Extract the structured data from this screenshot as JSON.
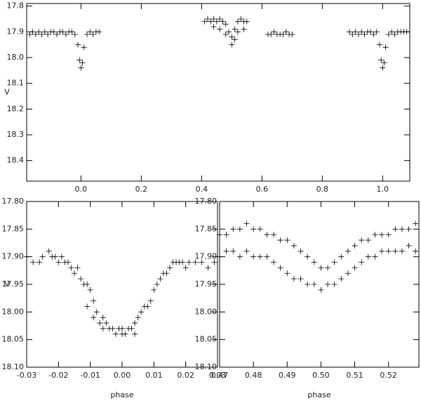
{
  "chart_data": [
    {
      "type": "scatter",
      "ylabel": "V",
      "y_inverted": true,
      "xlim": [
        -0.18,
        1.09
      ],
      "ylim": [
        17.79,
        18.48
      ],
      "xticks": [
        {
          "value": 0,
          "label": "0.0"
        },
        0.2,
        0.4,
        0.6,
        0.8,
        {
          "value": 1,
          "label": "1.0"
        }
      ],
      "yticks": [
        17.8,
        17.9,
        {
          "value": 18,
          "label": "18.0"
        },
        18.1,
        18.2,
        18.3,
        18.4
      ],
      "x": [
        -0.17,
        -0.16,
        -0.15,
        -0.14,
        -0.13,
        -0.12,
        -0.11,
        -0.1,
        -0.09,
        -0.08,
        -0.07,
        -0.06,
        -0.05,
        -0.04,
        -0.03,
        -0.02,
        -0.01,
        -0.005,
        0,
        0.005,
        0.01,
        0.02,
        0.03,
        0.04,
        0.05,
        0.06,
        0.41,
        0.42,
        0.43,
        0.44,
        0.45,
        0.46,
        0.47,
        0.48,
        0.49,
        0.5,
        0.51,
        0.52,
        0.53,
        0.54,
        0.55,
        0.44,
        0.46,
        0.48,
        0.5,
        0.51,
        0.52,
        0.54,
        0.62,
        0.63,
        0.64,
        0.65,
        0.66,
        0.67,
        0.68,
        0.69,
        0.7,
        0.89,
        0.9,
        0.91,
        0.92,
        0.93,
        0.94,
        0.95,
        0.96,
        0.97,
        0.98,
        0.99,
        0.995,
        1,
        1.005,
        1.01,
        1.02,
        1.03,
        1.04,
        1.05,
        1.06,
        1.07,
        1.08
      ],
      "values": [
        17.91,
        17.9,
        17.91,
        17.9,
        17.91,
        17.9,
        17.91,
        17.9,
        17.9,
        17.91,
        17.9,
        17.9,
        17.91,
        17.9,
        17.9,
        17.91,
        17.95,
        18.01,
        18.04,
        18.02,
        17.96,
        17.91,
        17.9,
        17.91,
        17.9,
        17.9,
        17.86,
        17.85,
        17.86,
        17.85,
        17.86,
        17.85,
        17.86,
        17.87,
        17.9,
        17.92,
        17.89,
        17.86,
        17.85,
        17.86,
        17.86,
        17.88,
        17.89,
        17.91,
        17.95,
        17.93,
        17.9,
        17.89,
        17.91,
        17.91,
        17.9,
        17.91,
        17.91,
        17.91,
        17.9,
        17.91,
        17.91,
        17.9,
        17.91,
        17.9,
        17.91,
        17.9,
        17.91,
        17.9,
        17.9,
        17.91,
        17.9,
        17.95,
        18.01,
        18.04,
        18.02,
        17.96,
        17.91,
        17.9,
        17.91,
        17.9,
        17.9,
        17.9,
        17.9
      ]
    },
    {
      "type": "scatter",
      "xlabel": "phase",
      "ylabel": "V",
      "y_inverted": true,
      "xlim": [
        -0.03,
        0.03
      ],
      "ylim": [
        17.8,
        18.1
      ],
      "xticks": [
        -0.03,
        -0.02,
        -0.01,
        {
          "value": 0,
          "label": "0.00"
        },
        0.01,
        0.02,
        0.03
      ],
      "yticks": [
        {
          "value": 17.8,
          "label": "17.80"
        },
        17.85,
        {
          "value": 17.9,
          "label": "17.90"
        },
        17.95,
        {
          "value": 18,
          "label": "18.00"
        },
        18.05,
        {
          "value": 18.1,
          "label": "18.10"
        }
      ],
      "x": [
        -0.03,
        -0.028,
        -0.026,
        -0.025,
        -0.023,
        -0.022,
        -0.021,
        -0.02,
        -0.019,
        -0.018,
        -0.017,
        -0.016,
        -0.015,
        -0.014,
        -0.013,
        -0.012,
        -0.011,
        -0.01,
        -0.011,
        -0.009,
        -0.009,
        -0.008,
        -0.007,
        -0.006,
        -0.006,
        -0.005,
        -0.004,
        -0.003,
        -0.002,
        -0.001,
        0,
        0,
        0.001,
        0.002,
        0.003,
        0.004,
        0.004,
        0.005,
        0.006,
        0.007,
        0.008,
        0.009,
        0.01,
        0.011,
        0.012,
        0.013,
        0.014,
        0.015,
        0.016,
        0.017,
        0.018,
        0.019,
        0.02,
        0.021,
        0.023,
        0.025,
        0.027,
        0.029
      ],
      "values": [
        17.9,
        17.91,
        17.91,
        17.9,
        17.89,
        17.9,
        17.9,
        17.91,
        17.9,
        17.91,
        17.91,
        17.92,
        17.93,
        17.92,
        17.94,
        17.95,
        17.95,
        17.96,
        17.99,
        17.98,
        18.01,
        18,
        18.02,
        18.01,
        18.03,
        18.02,
        18.03,
        18.03,
        18.04,
        18.03,
        18.04,
        18.03,
        18.04,
        18.03,
        18.03,
        18.04,
        18.02,
        18.01,
        18,
        17.99,
        17.99,
        17.98,
        17.96,
        17.95,
        17.94,
        17.93,
        17.93,
        17.92,
        17.91,
        17.91,
        17.91,
        17.91,
        17.92,
        17.91,
        17.91,
        17.91,
        17.92,
        17.91
      ]
    },
    {
      "type": "scatter",
      "xlabel": "phase",
      "y_inverted": true,
      "xlim": [
        0.47,
        0.529
      ],
      "ylim": [
        17.8,
        18.1
      ],
      "xticks": [
        0.47,
        0.48,
        0.49,
        {
          "value": 0.5,
          "label": "0.50"
        },
        0.51,
        0.52
      ],
      "yticks": [
        {
          "value": 17.8,
          "label": "17.80"
        },
        17.85,
        {
          "value": 17.9,
          "label": "17.90"
        },
        17.95,
        {
          "value": 18,
          "label": "18.00"
        },
        18.05,
        {
          "value": 18.1,
          "label": "18.10"
        }
      ],
      "x": [
        0.47,
        0.472,
        0.474,
        0.476,
        0.478,
        0.48,
        0.482,
        0.484,
        0.486,
        0.488,
        0.49,
        0.492,
        0.494,
        0.496,
        0.498,
        0.5,
        0.502,
        0.504,
        0.506,
        0.508,
        0.51,
        0.512,
        0.514,
        0.516,
        0.518,
        0.52,
        0.522,
        0.524,
        0.526,
        0.528,
        0.47,
        0.472,
        0.474,
        0.476,
        0.478,
        0.48,
        0.482,
        0.484,
        0.486,
        0.488,
        0.49,
        0.492,
        0.494,
        0.496,
        0.498,
        0.5,
        0.502,
        0.504,
        0.506,
        0.508,
        0.51,
        0.512,
        0.514,
        0.516,
        0.518,
        0.52,
        0.522,
        0.524,
        0.526,
        0.528
      ],
      "values": [
        17.86,
        17.86,
        17.85,
        17.85,
        17.84,
        17.85,
        17.85,
        17.86,
        17.86,
        17.87,
        17.87,
        17.88,
        17.89,
        17.9,
        17.91,
        17.92,
        17.92,
        17.91,
        17.9,
        17.89,
        17.88,
        17.87,
        17.87,
        17.86,
        17.86,
        17.86,
        17.85,
        17.85,
        17.85,
        17.84,
        17.9,
        17.89,
        17.89,
        17.9,
        17.89,
        17.9,
        17.9,
        17.9,
        17.91,
        17.92,
        17.93,
        17.94,
        17.94,
        17.95,
        17.95,
        17.96,
        17.95,
        17.95,
        17.94,
        17.93,
        17.92,
        17.91,
        17.9,
        17.9,
        17.89,
        17.89,
        17.89,
        17.89,
        17.88,
        17.89
      ]
    }
  ]
}
